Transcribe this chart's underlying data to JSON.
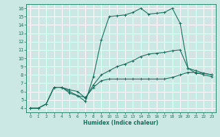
{
  "xlabel": "Humidex (Indice chaleur)",
  "bg_color": "#cce8e4",
  "line_color": "#1a6b5a",
  "grid_color": "#ffffff",
  "xlim": [
    -0.5,
    23.5
  ],
  "ylim": [
    3.5,
    16.5
  ],
  "xticks": [
    0,
    1,
    2,
    3,
    4,
    5,
    6,
    7,
    8,
    9,
    10,
    11,
    12,
    13,
    14,
    15,
    16,
    17,
    18,
    19,
    20,
    21,
    22,
    23
  ],
  "yticks": [
    4,
    5,
    6,
    7,
    8,
    9,
    10,
    11,
    12,
    13,
    14,
    15,
    16
  ],
  "line1_x": [
    0,
    1,
    2,
    3,
    4,
    5,
    6,
    7,
    8,
    9,
    10,
    11,
    12,
    13,
    14,
    15,
    16,
    17,
    18,
    19,
    20,
    21,
    22,
    23
  ],
  "line1_y": [
    4,
    4,
    4.5,
    6.5,
    6.5,
    6.0,
    5.5,
    4.8,
    7.8,
    12.2,
    15.0,
    15.1,
    15.2,
    15.5,
    16.0,
    15.3,
    15.4,
    15.5,
    16.0,
    14.2,
    8.8,
    8.2,
    8.2,
    8.0
  ],
  "line2_x": [
    0,
    1,
    2,
    3,
    4,
    5,
    6,
    7,
    8,
    9,
    10,
    11,
    12,
    13,
    14,
    15,
    16,
    17,
    18,
    19,
    20,
    21,
    22,
    23
  ],
  "line2_y": [
    4,
    4,
    4.5,
    6.5,
    6.5,
    6.2,
    6.0,
    5.2,
    6.8,
    8.0,
    8.5,
    9.0,
    9.3,
    9.7,
    10.2,
    10.5,
    10.6,
    10.7,
    10.9,
    11.0,
    8.8,
    8.5,
    8.2,
    8.0
  ],
  "line3_x": [
    0,
    1,
    2,
    3,
    4,
    5,
    6,
    7,
    8,
    9,
    10,
    11,
    12,
    13,
    14,
    15,
    16,
    17,
    18,
    19,
    20,
    21,
    22,
    23
  ],
  "line3_y": [
    4,
    4,
    4.5,
    6.5,
    6.5,
    5.8,
    5.5,
    5.3,
    6.5,
    7.3,
    7.5,
    7.5,
    7.5,
    7.5,
    7.5,
    7.5,
    7.5,
    7.5,
    7.7,
    8.0,
    8.3,
    8.3,
    8.0,
    7.8
  ]
}
